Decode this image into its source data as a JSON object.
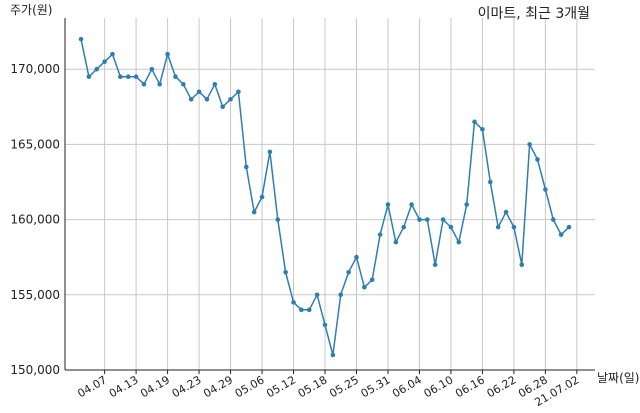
{
  "chart_data": {
    "type": "line",
    "title": "이마트, 최근 3개월",
    "xlabel": "날짜(일)",
    "ylabel": "주가(원)",
    "ylim": [
      150000,
      173000
    ],
    "yticks": [
      150000,
      155000,
      160000,
      165000,
      170000
    ],
    "ytick_labels": [
      "150,000",
      "155,000",
      "160,000",
      "165,000",
      "170,000"
    ],
    "xtick_labels": [
      "04.07",
      "04.13",
      "04.19",
      "04.23",
      "04.29",
      "05.06",
      "05.12",
      "05.18",
      "05.25",
      "05.31",
      "06.04",
      "06.10",
      "06.16",
      "06.22",
      "06.28",
      "21.07.02"
    ],
    "xtick_positions": [
      3,
      7,
      11,
      15,
      19,
      23,
      27,
      31,
      35,
      39,
      43,
      47,
      51,
      55,
      59,
      63
    ],
    "grid": true,
    "color": "#2e7fb0",
    "series": [
      {
        "values": [
          172000,
          169500,
          170000,
          170500,
          171000,
          169500,
          169500,
          169500,
          169000,
          170000,
          169000,
          171000,
          169500,
          169000,
          168000,
          168500,
          168000,
          169000,
          167500,
          168000,
          168500,
          163500,
          160500,
          161500,
          164500,
          160000,
          156500,
          154500,
          154000,
          154000,
          155000,
          153000,
          151000,
          155000,
          156500,
          157500,
          155500,
          156000,
          159000,
          161000,
          158500,
          159500,
          161000,
          160000,
          160000,
          157000,
          160000,
          159500,
          158500,
          161000,
          166500,
          166000,
          162500,
          159500,
          160500,
          159500,
          157000,
          165000,
          164000,
          162000,
          160000,
          159000,
          159500
        ]
      }
    ]
  }
}
